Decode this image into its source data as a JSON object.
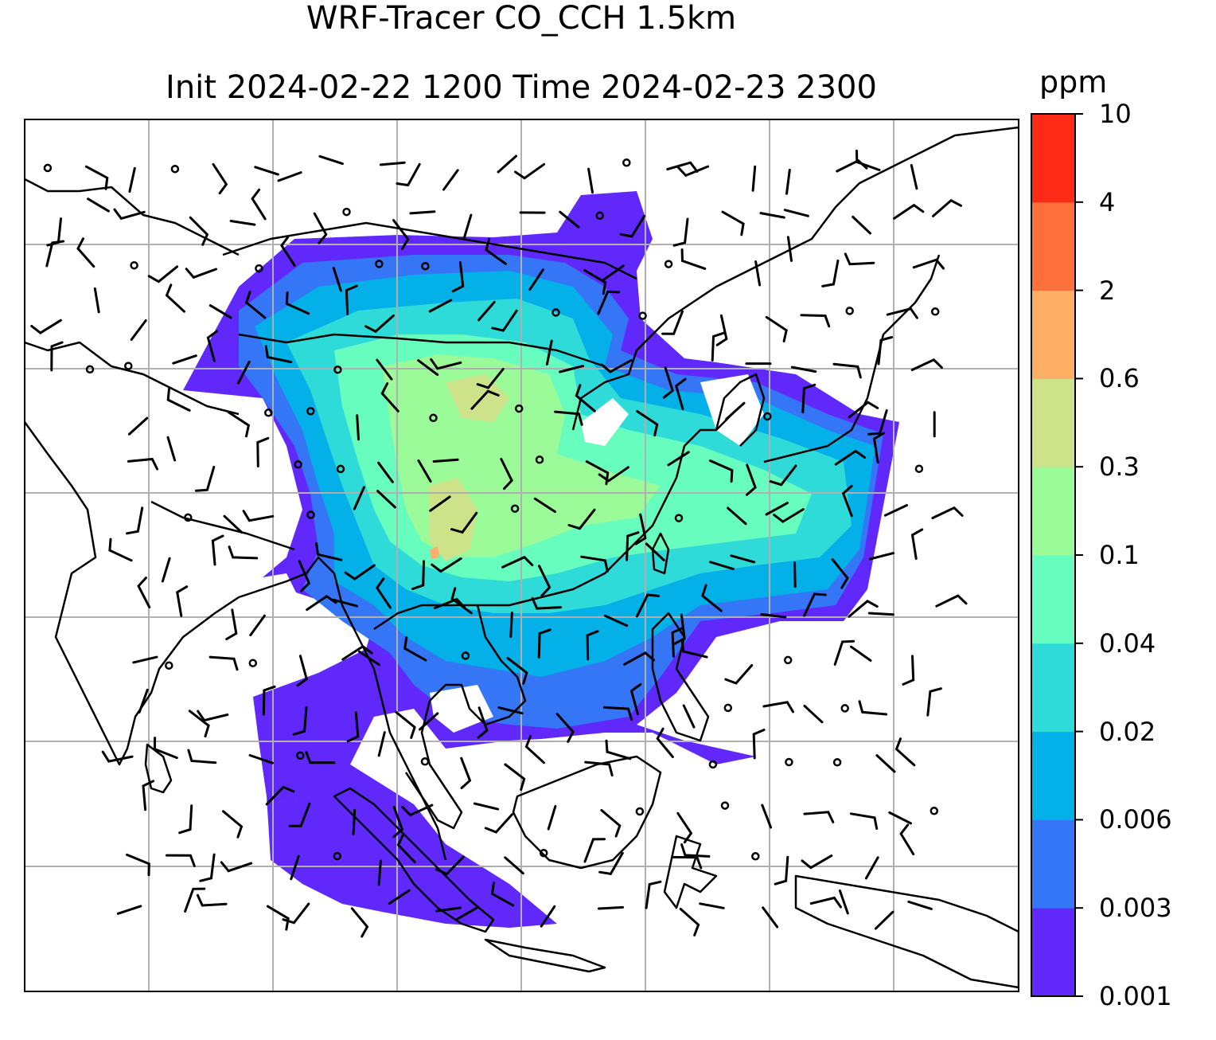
{
  "title": {
    "line1": "WRF-Tracer CO_CCH 1.5km",
    "line2": "Init 2024-02-22 1200 Time 2024-02-23 2300"
  },
  "colorbar": {
    "unit": "ppm",
    "levels": [
      "0.001",
      "0.003",
      "0.006",
      "0.02",
      "0.04",
      "0.1",
      "0.3",
      "0.6",
      "2",
      "4",
      "10"
    ],
    "colors": [
      "#6028fb",
      "#3476f6",
      "#04b0e8",
      "#2edbd8",
      "#66fdbe",
      "#9afb98",
      "#cde289",
      "#fdb065",
      "#fd6f3b",
      "#fd2a18"
    ]
  },
  "map": {
    "gridlines": true,
    "coastline_color": "#000000",
    "gridline_color": "#b0b0b0"
  }
}
